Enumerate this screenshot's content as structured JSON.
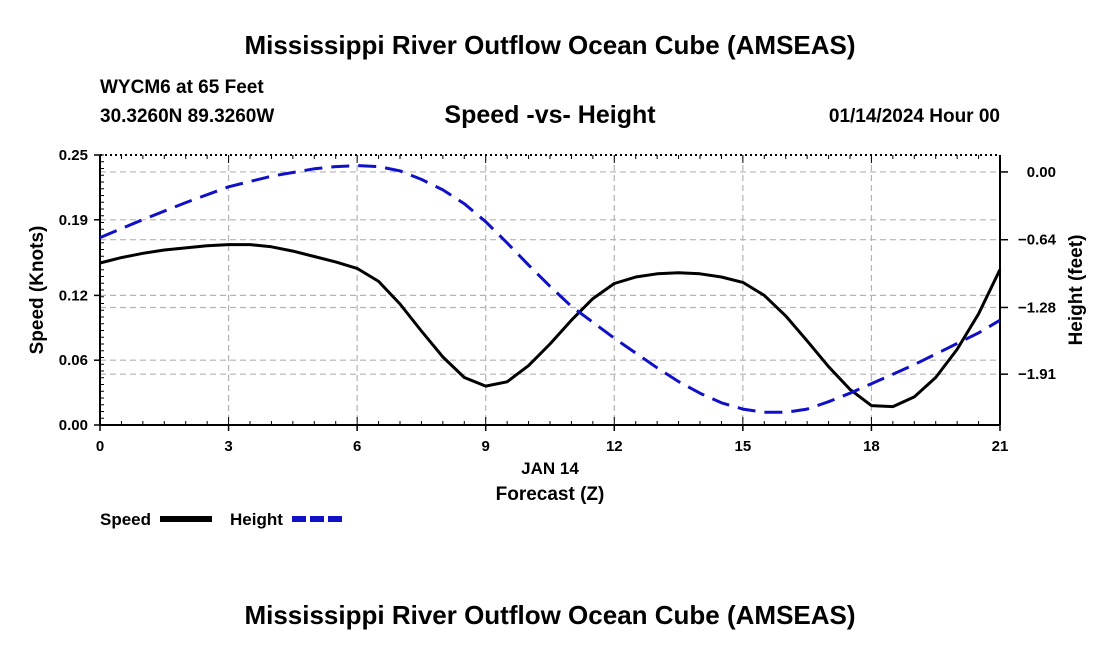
{
  "header": {
    "title_top": "Mississippi River Outflow Ocean Cube (AMSEAS)",
    "station": "WYCM6 at 65 Feet",
    "coordinates": "30.3260N  89.3260W",
    "datetime": "01/14/2024 Hour 00",
    "title_bottom": "Mississippi River Outflow Ocean Cube (AMSEAS)"
  },
  "colors": {
    "speed": "#000000",
    "height": "#1010c8",
    "grid": "#b4b4b4"
  },
  "chart_data": {
    "type": "line",
    "title": "Speed -vs- Height",
    "xlabel": "Forecast (Z)",
    "x_date_label": "JAN 14",
    "ylabel": "Speed (Knots)",
    "y2label": "Height (feet)",
    "xlim": [
      0,
      21
    ],
    "ylim": [
      0,
      0.25
    ],
    "y2lim": [
      -2.39,
      0.16
    ],
    "x_ticks": [
      0,
      3,
      6,
      9,
      12,
      15,
      18,
      21
    ],
    "y_ticks": [
      0.0,
      0.06,
      0.12,
      0.19,
      0.25
    ],
    "y_tick_labels": [
      "0.00",
      "0.06",
      "0.12",
      "0.19",
      "0.25"
    ],
    "y2_ticks": [
      0.0,
      -0.64,
      -1.28,
      -1.91
    ],
    "y2_tick_labels": [
      "0.00",
      "−0.64",
      "−1.28",
      "−1.91"
    ],
    "grid": true,
    "series": [
      {
        "name": "Speed",
        "axis": "left",
        "style": "solid",
        "x": [
          0,
          0.5,
          1,
          1.5,
          2,
          2.5,
          3,
          3.5,
          4,
          4.5,
          5,
          5.5,
          6,
          6.5,
          7,
          7.5,
          8,
          8.5,
          9,
          9.5,
          10,
          10.5,
          11,
          11.5,
          12,
          12.5,
          13,
          13.5,
          14,
          14.5,
          15,
          15.5,
          16,
          16.5,
          17,
          17.5,
          18,
          18.5,
          19,
          19.5,
          20,
          20.5,
          21
        ],
        "values": [
          0.15,
          0.155,
          0.159,
          0.162,
          0.164,
          0.166,
          0.167,
          0.167,
          0.165,
          0.161,
          0.156,
          0.151,
          0.145,
          0.133,
          0.112,
          0.087,
          0.063,
          0.044,
          0.036,
          0.04,
          0.055,
          0.075,
          0.097,
          0.117,
          0.131,
          0.137,
          0.14,
          0.141,
          0.14,
          0.137,
          0.132,
          0.12,
          0.101,
          0.078,
          0.054,
          0.033,
          0.018,
          0.017,
          0.026,
          0.044,
          0.07,
          0.103,
          0.144
        ]
      },
      {
        "name": "Height",
        "axis": "right",
        "style": "dashed",
        "x": [
          0,
          1,
          2,
          3,
          4,
          5,
          5.5,
          6,
          6.5,
          7,
          7.5,
          8,
          8.5,
          9,
          9.5,
          10,
          10.5,
          11,
          11.5,
          12,
          12.5,
          13,
          13.5,
          14,
          14.5,
          15,
          15.5,
          16,
          16.5,
          17,
          17.5,
          18,
          18.5,
          19,
          19.5,
          20,
          20.5,
          21
        ],
        "values": [
          -0.62,
          -0.45,
          -0.29,
          -0.14,
          -0.04,
          0.03,
          0.05,
          0.06,
          0.05,
          0.01,
          -0.07,
          -0.17,
          -0.3,
          -0.47,
          -0.67,
          -0.88,
          -1.08,
          -1.27,
          -1.42,
          -1.57,
          -1.71,
          -1.85,
          -1.98,
          -2.09,
          -2.18,
          -2.24,
          -2.27,
          -2.27,
          -2.24,
          -2.17,
          -2.09,
          -2.0,
          -1.91,
          -1.82,
          -1.72,
          -1.62,
          -1.52,
          -1.4
        ]
      }
    ]
  },
  "legend": {
    "speed_label": "Speed",
    "height_label": "Height"
  }
}
